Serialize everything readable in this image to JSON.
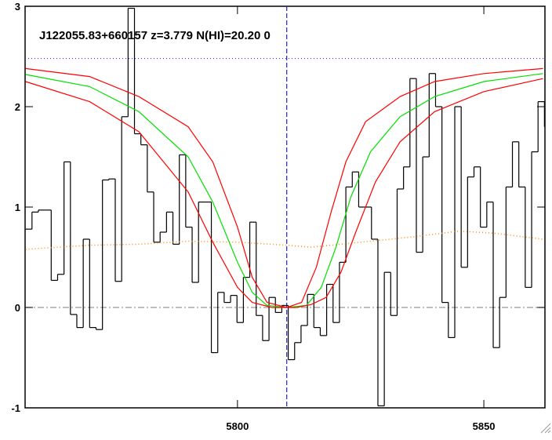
{
  "chart_data": {
    "type": "line",
    "title": "J122055.83+660157 z=3.779 N(HI)=20.20 0",
    "xlim": [
      5756.9,
      5862.4
    ],
    "ylim": [
      -1,
      3
    ],
    "xticks": [
      5800,
      5850
    ],
    "yticks": [
      -1,
      0,
      1,
      2,
      3
    ],
    "series": [
      {
        "name": "flux",
        "color": "#000000",
        "step": true,
        "x": [
          5757.0,
          5758.3,
          5759.6,
          5760.9,
          5762.2,
          5763.5,
          5764.8,
          5766.1,
          5767.4,
          5768.7,
          5770.0,
          5771.3,
          5772.6,
          5773.9,
          5775.2,
          5776.5,
          5777.8,
          5779.1,
          5780.4,
          5781.7,
          5783.0,
          5784.3,
          5785.6,
          5786.9,
          5788.2,
          5789.5,
          5790.8,
          5792.1,
          5793.4,
          5794.7,
          5796.0,
          5797.3,
          5798.6,
          5799.9,
          5801.2,
          5802.5,
          5803.8,
          5805.1,
          5806.4,
          5807.7,
          5809.0,
          5810.3,
          5811.6,
          5812.9,
          5814.2,
          5815.5,
          5816.8,
          5818.1,
          5819.4,
          5820.7,
          5822.0,
          5823.3,
          5824.6,
          5825.9,
          5827.2,
          5828.5,
          5829.8,
          5831.1,
          5832.4,
          5833.7,
          5835.0,
          5836.3,
          5837.6,
          5838.9,
          5840.2,
          5841.5,
          5842.8,
          5844.1,
          5845.4,
          5846.7,
          5848.0,
          5849.3,
          5850.6,
          5851.9,
          5853.2,
          5854.5,
          5855.8,
          5857.1,
          5858.4,
          5859.7,
          5861.0,
          5862.3
        ],
        "values": [
          0.78,
          0.95,
          0.97,
          0.97,
          0.27,
          0.33,
          1.45,
          -0.07,
          -0.2,
          0.68,
          -0.2,
          -0.22,
          1.27,
          1.28,
          0.26,
          1.9,
          2.98,
          1.73,
          1.62,
          1.15,
          0.65,
          0.75,
          0.95,
          0.63,
          1.52,
          0.8,
          0.25,
          1.05,
          1.05,
          -0.45,
          0.15,
          0.05,
          0.12,
          -0.15,
          0.3,
          0.85,
          -0.08,
          -0.33,
          0.1,
          -0.05,
          0.02,
          -0.52,
          -0.35,
          -0.18,
          0.13,
          -0.2,
          -0.28,
          0.23,
          -0.15,
          0.45,
          1.2,
          1.35,
          1.0,
          1.0,
          0.68,
          -0.98,
          0.35,
          -0.08,
          1.18,
          1.4,
          2.28,
          0.55,
          1.5,
          2.33,
          2.0,
          0.05,
          -0.3,
          2.0,
          0.4,
          1.3,
          1.4,
          0.8,
          1.05,
          -0.4,
          0.1,
          1.2,
          1.65,
          1.2,
          0.2,
          1.55,
          2.05,
          1.8
        ]
      },
      {
        "name": "error",
        "color": "#ff8c00",
        "dash": "1 3",
        "x": [
          5757,
          5770,
          5780,
          5790,
          5800,
          5810,
          5815,
          5825,
          5835,
          5845,
          5852,
          5862
        ],
        "values": [
          0.58,
          0.62,
          0.63,
          0.66,
          0.65,
          0.62,
          0.6,
          0.65,
          0.7,
          0.76,
          0.74,
          0.68
        ]
      },
      {
        "name": "fit",
        "color": "#00e000",
        "x": [
          5757,
          5770,
          5780,
          5790,
          5795,
          5800,
          5803,
          5806,
          5810,
          5814,
          5817,
          5820,
          5823,
          5827,
          5833,
          5840,
          5850,
          5862
        ],
        "values": [
          2.32,
          2.2,
          1.95,
          1.5,
          1.05,
          0.45,
          0.15,
          0.02,
          0,
          0.02,
          0.2,
          0.6,
          1.1,
          1.55,
          1.9,
          2.1,
          2.25,
          2.33
        ]
      },
      {
        "name": "fit-upper",
        "color": "#ff0000",
        "x": [
          5757,
          5770,
          5780,
          5790,
          5795,
          5800,
          5803,
          5806,
          5810,
          5813,
          5816,
          5819,
          5822,
          5826,
          5833,
          5840,
          5850,
          5862
        ],
        "values": [
          2.38,
          2.3,
          2.1,
          1.8,
          1.45,
          0.8,
          0.3,
          0.05,
          0,
          0.05,
          0.4,
          0.95,
          1.45,
          1.85,
          2.1,
          2.25,
          2.33,
          2.38
        ]
      },
      {
        "name": "fit-lower",
        "color": "#ff0000",
        "x": [
          5757,
          5770,
          5780,
          5790,
          5795,
          5800,
          5803,
          5807,
          5812,
          5815,
          5818,
          5821,
          5824,
          5828,
          5833,
          5840,
          5850,
          5862
        ],
        "values": [
          2.25,
          2.05,
          1.75,
          1.15,
          0.65,
          0.2,
          0.05,
          0,
          0,
          0.03,
          0.1,
          0.35,
          0.75,
          1.25,
          1.65,
          1.95,
          2.15,
          2.28
        ]
      }
    ],
    "reference_lines": [
      {
        "axis": "y",
        "value": 2.48,
        "color": "#3333ff",
        "dash": "1 3"
      },
      {
        "axis": "y",
        "value": 0,
        "color": "#999999",
        "dash": "8 3 2 3"
      },
      {
        "axis": "x",
        "value": 5810,
        "color": "#2222cc",
        "dash": "6 3"
      }
    ]
  }
}
